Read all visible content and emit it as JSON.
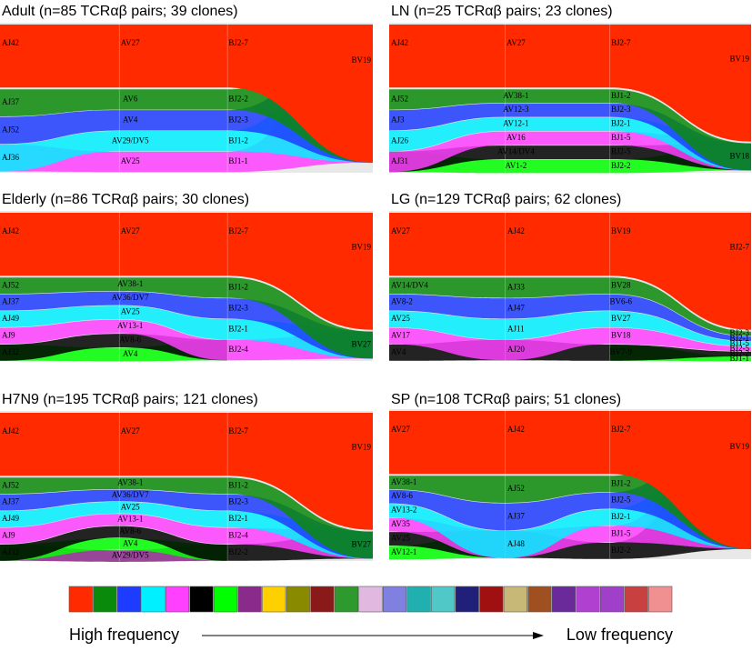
{
  "panels": [
    {
      "title": "Adult (n=85 TCRαβ pairs; 39 clones)",
      "columns": [
        [
          "AJ42",
          "AJ37",
          "AJ52",
          "AJ36"
        ],
        [
          "AV27",
          "AV6",
          "AV4",
          "AV29/DV5",
          "AV25"
        ],
        [
          "BJ2-7",
          "BJ2-2",
          "BJ2-3",
          "BJ1-2",
          "BJ1-1"
        ],
        [
          "BV19"
        ]
      ]
    },
    {
      "title": "LN (n=25 TCRαβ pairs; 23 clones)",
      "columns": [
        [
          "AJ42",
          "AJ52",
          "AJ3",
          "AJ26",
          "AJ31"
        ],
        [
          "AV27",
          "AV38-1",
          "AV12-3",
          "AV12-1",
          "AV16",
          "AV14/DV4",
          "AV1-2"
        ],
        [
          "BJ2-7",
          "BJ1-2",
          "BJ2-3",
          "BJ2-1",
          "BJ1-5",
          "BJ2-5",
          "BJ2-2"
        ],
        [
          "BV19",
          "BV18"
        ]
      ]
    },
    {
      "title": "Elderly (n=86 TCRαβ pairs; 30 clones)",
      "columns": [
        [
          "AJ42",
          "AJ52",
          "AJ37",
          "AJ49",
          "AJ9",
          "AJ32"
        ],
        [
          "AV27",
          "AV38-1",
          "AV36/DV7",
          "AV25",
          "AV13-1",
          "AV8-6",
          "AV4"
        ],
        [
          "BJ2-7",
          "BJ1-2",
          "BJ2-3",
          "BJ2-1",
          "BJ2-4"
        ],
        [
          "BV19",
          "BV27"
        ]
      ]
    },
    {
      "title": "LG (n=129 TCRαβ pairs; 62 clones)",
      "columns": [
        [
          "AV27",
          "AV14/DV4",
          "AV8-2",
          "AV25",
          "AV17",
          "AV4"
        ],
        [
          "AJ42",
          "AJ33",
          "AJ47",
          "AJ11",
          "AJ20"
        ],
        [
          "BV19",
          "BV28",
          "BV6-6",
          "BV27",
          "BV18",
          "BV7-9"
        ],
        [
          "BJ2-7",
          "BJ2-3",
          "BJ2-1",
          "BJ1-5",
          "BJ2-5",
          "BJ2-2",
          "BJ1-1"
        ]
      ]
    },
    {
      "title": "H7N9 (n=195 TCRαβ pairs; 121 clones)",
      "columns": [
        [
          "AJ42",
          "AJ52",
          "AJ37",
          "AJ49",
          "AJ9",
          "AJ32"
        ],
        [
          "AV27",
          "AV38-1",
          "AV36/DV7",
          "AV25",
          "AV13-1",
          "AV8-6",
          "AV4",
          "AV29/DV5"
        ],
        [
          "BJ2-7",
          "BJ1-2",
          "BJ2-3",
          "BJ2-1",
          "BJ2-4",
          "BJ2-2"
        ],
        [
          "BV19",
          "BV27"
        ]
      ]
    },
    {
      "title": "SP (n=108 TCRαβ pairs; 51 clones)",
      "columns": [
        [
          "AV27",
          "AV38-1",
          "AV8-6",
          "AV13-2",
          "AV35",
          "AV25",
          "AV12-1"
        ],
        [
          "AJ42",
          "AJ52",
          "AJ37",
          "AJ48"
        ],
        [
          "BJ2-7",
          "BJ1-2",
          "BJ2-5",
          "BJ2-1",
          "BJ1-5",
          "BJ2-2"
        ],
        [
          "BV19"
        ]
      ]
    }
  ],
  "colorbar": {
    "colors": [
      "#ff2a00",
      "#0a8a0a",
      "#1e3cff",
      "#00f0ff",
      "#ff40ff",
      "#000000",
      "#00ff00",
      "#8a2a8a",
      "#ffd000",
      "#8a8a00",
      "#8a1a1a",
      "#2e9a2e",
      "#e0b8e0",
      "#8080e0",
      "#20b0b0",
      "#50c8c8",
      "#20207a",
      "#a01010",
      "#c8b878",
      "#a05020",
      "#6a2a9a",
      "#b040d0",
      "#a040c8",
      "#c84040",
      "#f09090"
    ],
    "low_label": "Low frequency",
    "high_label": "High frequency"
  }
}
